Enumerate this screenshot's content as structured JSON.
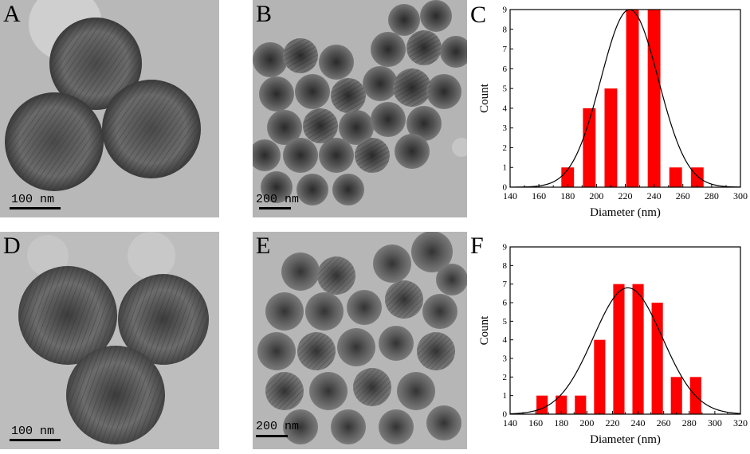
{
  "panels": {
    "A": {
      "letter": "A",
      "scale_label": "100  nm"
    },
    "B": {
      "letter": "B",
      "scale_label": "200 nm"
    },
    "C": {
      "letter": "C"
    },
    "D": {
      "letter": "D",
      "scale_label": "100  nm"
    },
    "E": {
      "letter": "E",
      "scale_label": "200 nm"
    },
    "F": {
      "letter": "F"
    }
  },
  "colors": {
    "bar": "#ff0000",
    "fit": "#000000"
  },
  "chart_data": [
    {
      "type": "bar",
      "panel": "C",
      "xlabel": "Diameter (nm)",
      "ylabel": "Count",
      "xlim": [
        140,
        300
      ],
      "ylim": [
        0,
        9
      ],
      "xticks": [
        140,
        160,
        180,
        200,
        220,
        240,
        260,
        280,
        300
      ],
      "yticks": [
        0,
        1,
        2,
        3,
        4,
        5,
        6,
        7,
        8,
        9
      ],
      "bin_width": 10,
      "bin_centers": [
        180,
        195,
        210,
        225,
        240,
        255,
        270
      ],
      "values": [
        1,
        4,
        5,
        9,
        9,
        1,
        1
      ],
      "fit": {
        "type": "gaussian",
        "mean": 223,
        "sigma": 20,
        "peak": 9
      }
    },
    {
      "type": "bar",
      "panel": "F",
      "xlabel": "Diameter (nm)",
      "ylabel": "Count",
      "xlim": [
        140,
        320
      ],
      "ylim": [
        0,
        9
      ],
      "xticks": [
        140,
        160,
        180,
        200,
        220,
        240,
        260,
        280,
        300,
        320
      ],
      "yticks": [
        0,
        1,
        2,
        3,
        4,
        5,
        6,
        7,
        8,
        9
      ],
      "bin_width": 10,
      "bin_centers": [
        165,
        180,
        195,
        210,
        225,
        240,
        255,
        270,
        285
      ],
      "values": [
        1,
        1,
        1,
        4,
        7,
        7,
        6,
        2,
        2
      ],
      "fit": {
        "type": "gaussian",
        "mean": 232,
        "sigma": 27,
        "peak": 6.8
      }
    }
  ]
}
